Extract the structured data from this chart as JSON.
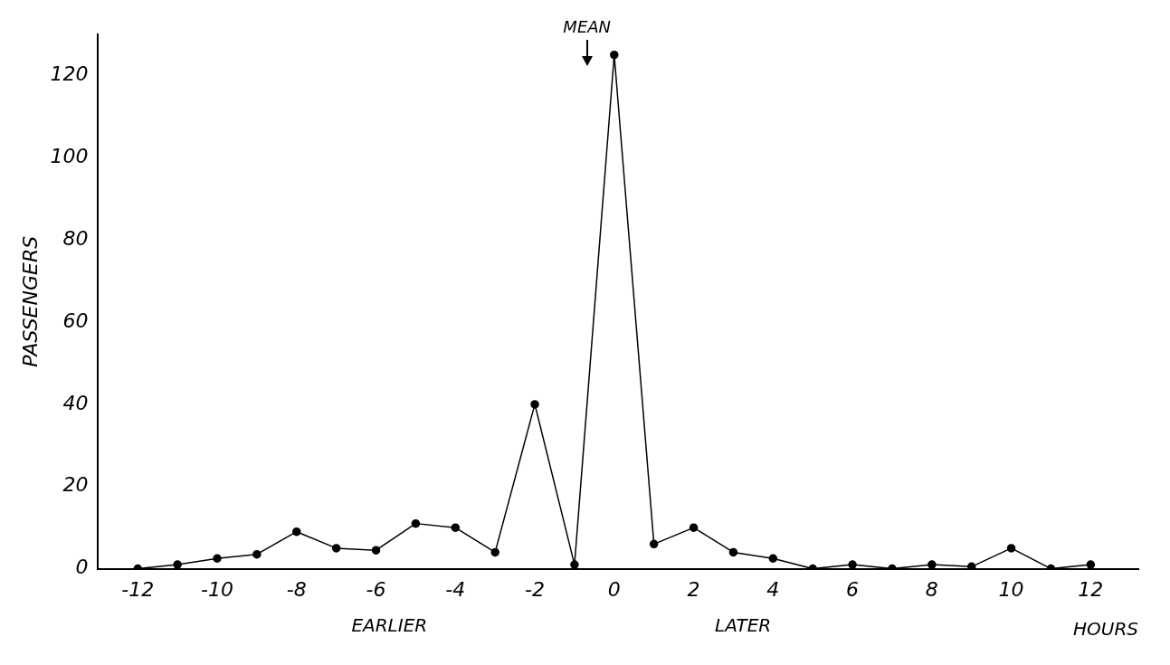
{
  "chart_data": {
    "type": "line",
    "ylabel": "PASSENGERS",
    "xlabel": "HOURS",
    "x": [
      -12,
      -11,
      -10,
      -9,
      -8,
      -7,
      -6,
      -5,
      -4,
      -3,
      -2,
      -1,
      0,
      1,
      2,
      3,
      4,
      5,
      6,
      7,
      8,
      9,
      10,
      11,
      12
    ],
    "series": [
      {
        "color": "#000000",
        "values": [
          0,
          1,
          2.5,
          3.5,
          9,
          5,
          4.5,
          11,
          10,
          4,
          40,
          1,
          125,
          6,
          10,
          4,
          2.5,
          0,
          1,
          0,
          1,
          0.5,
          5,
          0,
          1
        ]
      }
    ],
    "xlim": [
      -13,
      13.2
    ],
    "ylim": [
      0,
      130
    ],
    "xticks": [
      -12,
      -10,
      -8,
      -6,
      -4,
      -2,
      0,
      2,
      4,
      6,
      8,
      10,
      12
    ],
    "yticks": [
      0,
      20,
      40,
      60,
      80,
      100,
      120
    ],
    "annotations": [
      "MEAN",
      "EARLIER",
      "LATER"
    ],
    "marker": "circle",
    "line_style": "solid",
    "grid": false,
    "legend": false
  }
}
